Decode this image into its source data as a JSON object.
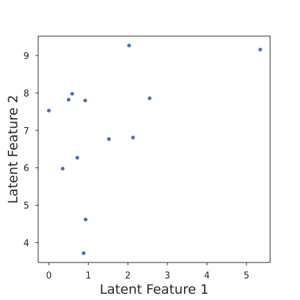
{
  "chart_data": {
    "type": "scatter",
    "title": "",
    "xlabel": "Latent Feature 1",
    "ylabel": "Latent Feature 2",
    "xlim": [
      -0.27,
      5.6
    ],
    "ylim": [
      3.47,
      9.52
    ],
    "xticks": [
      0,
      1,
      2,
      3,
      4,
      5
    ],
    "yticks": [
      4,
      5,
      6,
      7,
      8,
      9
    ],
    "xtick_labels": [
      "0",
      "1",
      "2",
      "3",
      "4",
      "5"
    ],
    "ytick_labels": [
      "4",
      "5",
      "6",
      "7",
      "8",
      "9"
    ],
    "grid": false,
    "marker_color": "#4c72b0",
    "points": [
      {
        "x": 0.0,
        "y": 7.53
      },
      {
        "x": 0.35,
        "y": 5.98
      },
      {
        "x": 0.5,
        "y": 7.82
      },
      {
        "x": 0.59,
        "y": 7.98
      },
      {
        "x": 0.72,
        "y": 6.27
      },
      {
        "x": 0.88,
        "y": 3.72
      },
      {
        "x": 0.92,
        "y": 7.8
      },
      {
        "x": 0.93,
        "y": 4.62
      },
      {
        "x": 1.52,
        "y": 6.77
      },
      {
        "x": 2.03,
        "y": 9.27
      },
      {
        "x": 2.13,
        "y": 6.81
      },
      {
        "x": 2.55,
        "y": 7.86
      },
      {
        "x": 5.35,
        "y": 9.16
      }
    ]
  }
}
